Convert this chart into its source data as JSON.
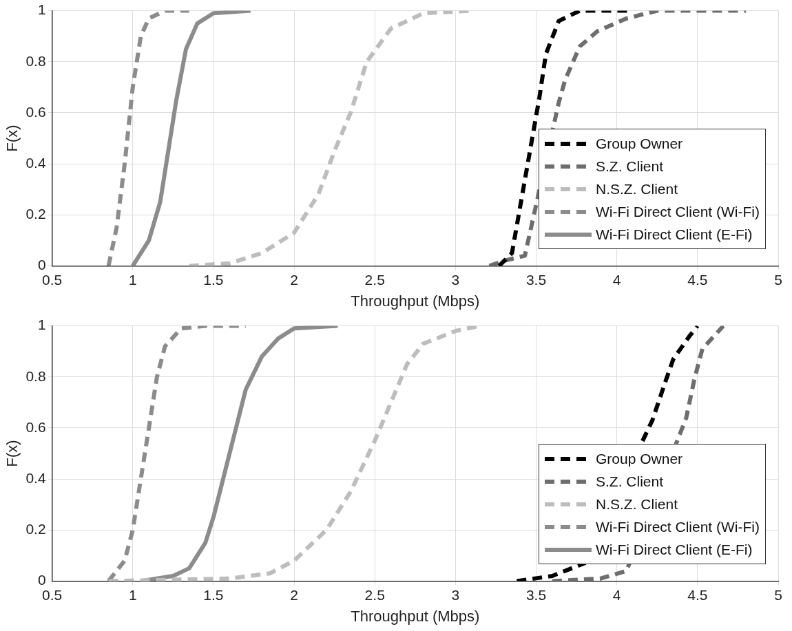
{
  "chart_data": [
    {
      "type": "line",
      "xlabel": "Throughput (Mbps)",
      "ylabel": "F(x)",
      "xlim": [
        0.5,
        5
      ],
      "xticks": [
        0.5,
        1,
        1.5,
        2,
        2.5,
        3,
        3.5,
        4,
        4.5,
        5
      ],
      "ylim": [
        0,
        1
      ],
      "yticks": [
        0,
        0.2,
        0.4,
        0.6,
        0.8,
        1
      ],
      "grid": true,
      "legend": "right",
      "marker": "none",
      "series": [
        {
          "name": "Group Owner",
          "color": "#000000",
          "line_style": "dashed",
          "x": [
            3.27,
            3.35,
            3.52,
            3.56,
            3.64,
            3.77,
            4.1
          ],
          "values": [
            0,
            0.05,
            0.66,
            0.83,
            0.96,
            1,
            1
          ]
        },
        {
          "name": "S.Z. Client",
          "color": "#6e6e6e",
          "line_style": "dashed",
          "x": [
            3.21,
            3.3,
            3.43,
            3.64,
            3.68,
            3.77,
            3.88,
            4.06,
            4.25,
            4.8
          ],
          "values": [
            0,
            0.02,
            0.04,
            0.64,
            0.73,
            0.86,
            0.92,
            0.97,
            1,
            1
          ]
        },
        {
          "name": "N.S.Z. Client",
          "color": "#bdbdbd",
          "line_style": "dashed",
          "x": [
            1.35,
            1.6,
            1.8,
            2.0,
            2.15,
            2.25,
            2.35,
            2.45,
            2.6,
            2.8,
            3.1
          ],
          "values": [
            0,
            0.01,
            0.05,
            0.13,
            0.28,
            0.45,
            0.6,
            0.8,
            0.93,
            0.99,
            1
          ]
        },
        {
          "name": "Wi-Fi Direct Client (Wi-Fi)",
          "color": "#8c8c8c",
          "line_style": "dashed",
          "x": [
            0.85,
            0.9,
            0.95,
            1.0,
            1.05,
            1.1,
            1.2,
            1.35
          ],
          "values": [
            0,
            0.15,
            0.4,
            0.7,
            0.9,
            0.97,
            1,
            1
          ]
        },
        {
          "name": "Wi-Fi Direct Client (E-Fi)",
          "color": "#8c8c8c",
          "line_style": "solid",
          "x": [
            1.0,
            1.1,
            1.17,
            1.22,
            1.27,
            1.33,
            1.4,
            1.5,
            1.73
          ],
          "values": [
            0,
            0.1,
            0.25,
            0.45,
            0.65,
            0.85,
            0.95,
            0.99,
            1
          ]
        }
      ]
    },
    {
      "type": "line",
      "xlabel": "Throughput (Mbps)",
      "ylabel": "F(x)",
      "xlim": [
        0.5,
        5
      ],
      "xticks": [
        0.5,
        1,
        1.5,
        2,
        2.5,
        3,
        3.5,
        4,
        4.5,
        5
      ],
      "ylim": [
        0,
        1
      ],
      "yticks": [
        0,
        0.2,
        0.4,
        0.6,
        0.8,
        1
      ],
      "grid": true,
      "legend": "right",
      "marker": "none",
      "series": [
        {
          "name": "Group Owner",
          "color": "#000000",
          "line_style": "dashed",
          "x": [
            3.38,
            3.6,
            3.8,
            4.22,
            4.3,
            4.35,
            4.45,
            4.5
          ],
          "values": [
            0,
            0.02,
            0.07,
            0.63,
            0.78,
            0.87,
            0.96,
            1
          ]
        },
        {
          "name": "S.Z. Client",
          "color": "#6e6e6e",
          "line_style": "dashed",
          "x": [
            3.6,
            3.9,
            4.06,
            4.43,
            4.48,
            4.53,
            4.66,
            4.7
          ],
          "values": [
            0,
            0.01,
            0.04,
            0.64,
            0.79,
            0.91,
            1,
            1
          ]
        },
        {
          "name": "N.S.Z. Client",
          "color": "#bdbdbd",
          "line_style": "dashed",
          "x": [
            0.85,
            1.6,
            1.85,
            2.0,
            2.2,
            2.35,
            2.5,
            2.6,
            2.7,
            2.8,
            3.0,
            3.15
          ],
          "values": [
            0,
            0.01,
            0.03,
            0.08,
            0.2,
            0.35,
            0.55,
            0.7,
            0.85,
            0.93,
            0.98,
            1
          ]
        },
        {
          "name": "Wi-Fi Direct Client (Wi-Fi)",
          "color": "#8c8c8c",
          "line_style": "dashed",
          "x": [
            0.85,
            0.95,
            1.0,
            1.05,
            1.1,
            1.15,
            1.2,
            1.3,
            1.45,
            1.7
          ],
          "values": [
            0,
            0.08,
            0.2,
            0.4,
            0.6,
            0.8,
            0.92,
            0.99,
            1,
            1
          ]
        },
        {
          "name": "Wi-Fi Direct Client (E-Fi)",
          "color": "#8c8c8c",
          "line_style": "solid",
          "x": [
            1.05,
            1.25,
            1.35,
            1.45,
            1.5,
            1.6,
            1.7,
            1.8,
            1.9,
            2.0,
            2.27
          ],
          "values": [
            0,
            0.02,
            0.05,
            0.15,
            0.25,
            0.5,
            0.75,
            0.88,
            0.95,
            0.99,
            1
          ]
        }
      ]
    }
  ]
}
